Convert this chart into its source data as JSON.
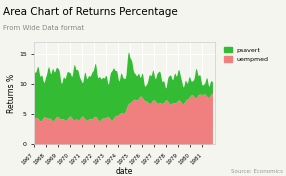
{
  "title": "Area Chart of Returns Percentage",
  "subtitle": "From Wide Data format",
  "xlabel": "date",
  "ylabel": "Returns %",
  "source": "Source: Economics",
  "ylim": [
    0,
    17
  ],
  "yticks": [
    0,
    5,
    10,
    15
  ],
  "xtick_labels": [
    "1967",
    "1968",
    "1969",
    "1970",
    "1971",
    "1972",
    "1973",
    "1974",
    "1975",
    "1976",
    "1977",
    "1978",
    "1979",
    "1980",
    "1981"
  ],
  "legend_labels": [
    "psavert",
    "uempmed"
  ],
  "green_color": "#33bb33",
  "red_color": "#f08080",
  "bg_color": "#f5f5f0",
  "grid_color": "#ffffff",
  "title_fontsize": 7.5,
  "subtitle_fontsize": 5.0,
  "axis_label_fontsize": 5.5,
  "tick_fontsize": 4.5,
  "legend_fontsize": 4.5,
  "source_fontsize": 4.0
}
